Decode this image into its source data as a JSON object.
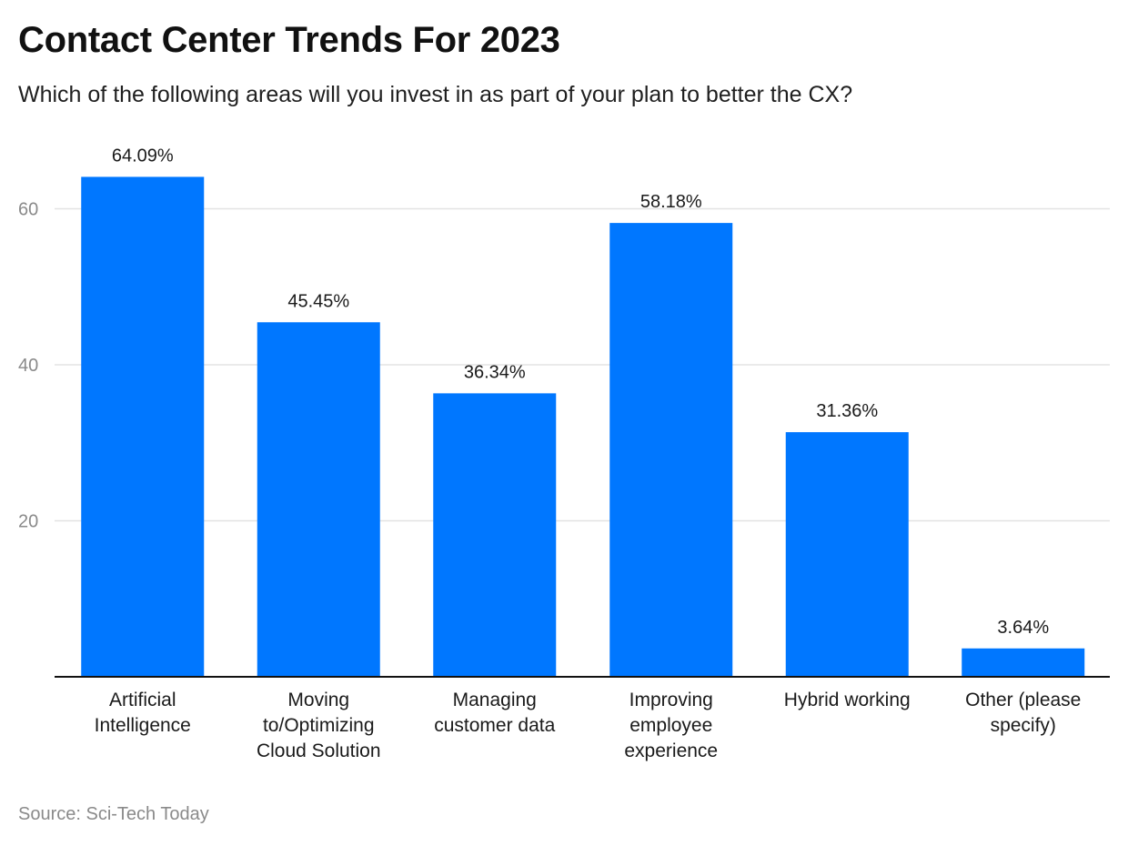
{
  "header": {
    "title": "Contact Center Trends For 2023",
    "subtitle": "Which of the following areas will you invest in as part of your plan to better the CX?"
  },
  "footer": {
    "source": "Source: Sci-Tech Today"
  },
  "colors": {
    "bar": "#0077ff",
    "grid": "#e3e3e3",
    "axis": "#111111"
  },
  "chart_data": {
    "type": "bar",
    "title": "Contact Center Trends For 2023",
    "subtitle": "Which of the following areas will you invest in as part of your plan to better the CX?",
    "categories": [
      [
        "Artificial",
        "Intelligence"
      ],
      [
        "Moving",
        "to/Optimizing",
        "Cloud Solution"
      ],
      [
        "Managing",
        "customer data"
      ],
      [
        "Improving",
        "employee",
        "experience"
      ],
      [
        "Hybrid working"
      ],
      [
        "Other (please",
        "specify)"
      ]
    ],
    "values": [
      64.09,
      45.45,
      36.34,
      58.18,
      31.36,
      3.64
    ],
    "data_labels": [
      "64.09%",
      "45.45%",
      "36.34%",
      "58.18%",
      "31.36%",
      "3.64%"
    ],
    "y_ticks": [
      20,
      40,
      60
    ],
    "ylim": [
      0,
      65
    ],
    "xlabel": "",
    "ylabel": "",
    "grid": true,
    "legend": "none"
  }
}
